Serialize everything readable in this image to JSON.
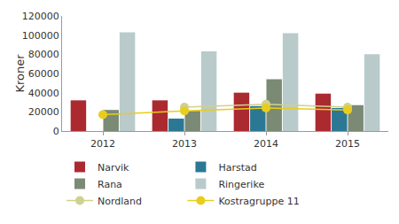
{
  "chart_data": {
    "type": "bar",
    "y_label": "Kroner",
    "categories": [
      "2012",
      "2013",
      "2014",
      "2015"
    ],
    "series": [
      {
        "name": "Narvik",
        "type": "bar",
        "color": "#ab2a30",
        "values": [
          32000,
          32000,
          40000,
          39000
        ]
      },
      {
        "name": "Harstad",
        "type": "bar",
        "color": "#2c7894",
        "values": [
          null,
          13000,
          26000,
          24000
        ]
      },
      {
        "name": "Rana",
        "type": "bar",
        "color": "#7b8a74",
        "values": [
          22000,
          21000,
          54000,
          27000
        ]
      },
      {
        "name": "Ringerike",
        "type": "bar",
        "color": "#b9cacb",
        "values": [
          103000,
          83000,
          102000,
          80000
        ]
      },
      {
        "name": "Nordland",
        "type": "line",
        "color": "#cfd18e",
        "marker": "circle",
        "values": [
          null,
          25000,
          28000,
          25000
        ]
      },
      {
        "name": "Kostragruppe 11",
        "type": "line",
        "color": "#e8cd1c",
        "marker": "circle",
        "values": [
          17000,
          21000,
          24000,
          22000
        ]
      }
    ],
    "ylim": [
      0,
      120000
    ],
    "yticks": [
      0,
      20000,
      40000,
      60000,
      80000,
      100000,
      120000
    ],
    "grid": false,
    "legend": "bottom"
  }
}
